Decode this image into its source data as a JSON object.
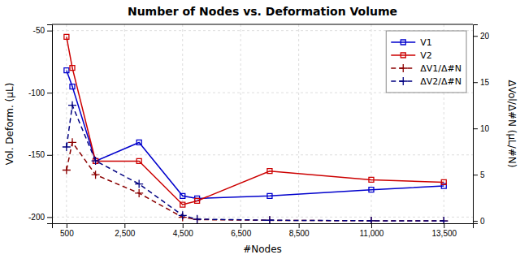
{
  "chart_data": {
    "type": "line",
    "title": "Number of Nodes vs. Deformation Volume",
    "xlabel": "#Nodes",
    "ylabel": "Vol. Deform. (μL)",
    "y2label": "ΔVol/Δ#N (μL/#N)",
    "x": [
      500,
      700,
      1500,
      3000,
      4500,
      5000,
      7500,
      11000,
      13500
    ],
    "xlim": [
      0,
      14500
    ],
    "xticks": [
      500,
      {
        "value": 2500,
        "label": "2,500"
      },
      {
        "value": 4500,
        "label": "4,500"
      },
      {
        "value": 6500,
        "label": "6,500"
      },
      {
        "value": 8500,
        "label": "8,500"
      },
      {
        "value": 11000,
        "label": "11,000"
      },
      {
        "value": 13500,
        "label": "13,500"
      }
    ],
    "ylim": [
      -205,
      -45
    ],
    "yticks": [
      -200,
      -150,
      -100,
      -50
    ],
    "y2lim": [
      -0.25,
      21.25
    ],
    "y2ticks": [
      0,
      5,
      10,
      15,
      20
    ],
    "grid": true,
    "legend": "upper right",
    "series": [
      {
        "name": "V1",
        "color": "#0000cc",
        "marker": "square",
        "line_style": "solid",
        "values": [
          -82,
          -95,
          -155,
          -140,
          -183,
          -185,
          -183,
          -178,
          -175
        ]
      },
      {
        "name": "V2",
        "color": "#cc0000",
        "marker": "square",
        "line_style": "solid",
        "values": [
          -55,
          -80,
          -155,
          -155,
          -190,
          -187,
          -163,
          -170,
          -172
        ]
      },
      {
        "name": "ΔV1/Δ#N",
        "color": "#8b0000",
        "marker": "plus",
        "line_style": "dashed",
        "axis": "y2",
        "values": [
          5.5,
          8.5,
          5.0,
          3.0,
          0.4,
          0.15,
          0.07,
          0.02,
          0.01
        ]
      },
      {
        "name": "ΔV2/Δ#N",
        "color": "#000080",
        "marker": "plus",
        "line_style": "dashed",
        "axis": "y2",
        "values": [
          8.0,
          12.5,
          6.5,
          4.0,
          0.6,
          0.2,
          0.08,
          0.02,
          0.01
        ]
      }
    ]
  }
}
